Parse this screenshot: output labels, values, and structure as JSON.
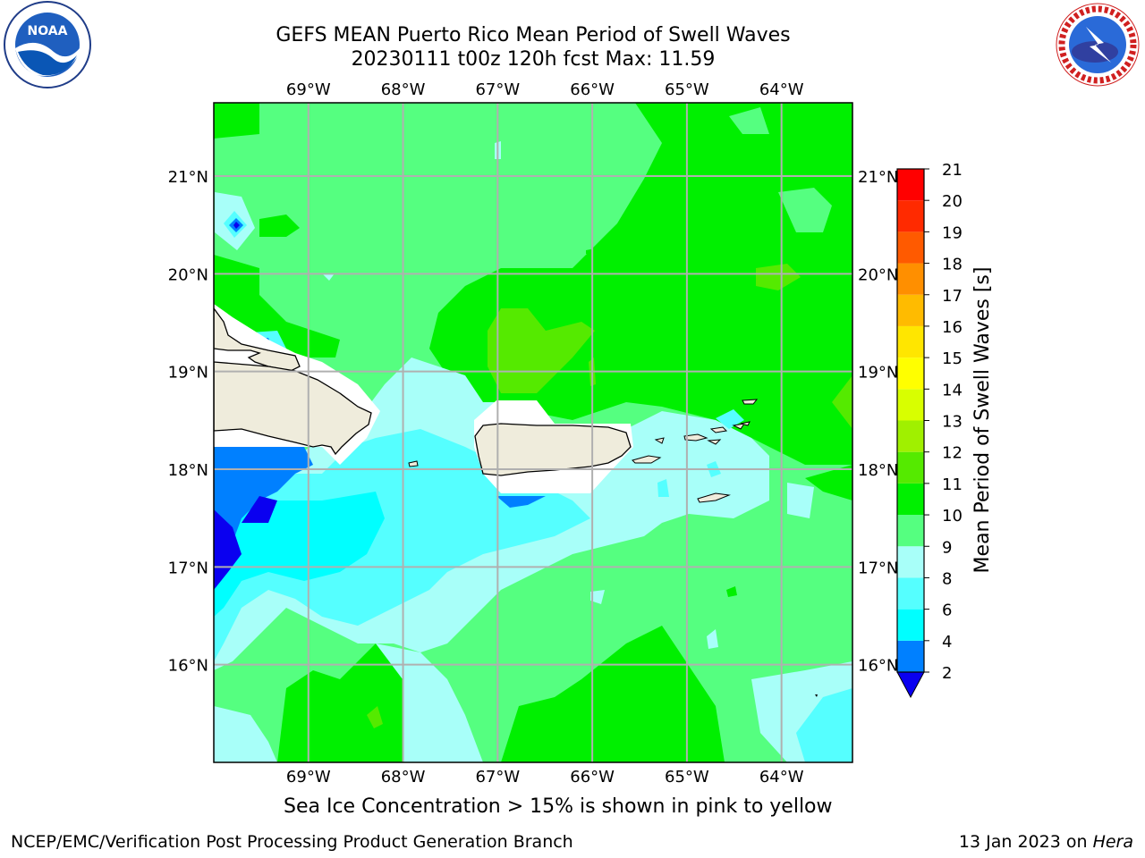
{
  "header": {
    "title_line1": "GEFS MEAN Puerto Rico Mean Period of Swell Waves",
    "title_line2": "20230111 t00z 120h fcst   Max: 11.59"
  },
  "logos": {
    "left": {
      "icon": "noaa-logo",
      "text": "NOAA",
      "ring_text": "NATIONAL OCEANIC AND ATMOSPHERIC ADMINISTRATION · U.S. DEPARTMENT OF COMMERCE"
    },
    "right": {
      "icon": "nws-logo",
      "ring_text": "NATIONAL WEATHER SERVICE"
    }
  },
  "map": {
    "lon_labels": [
      "69°W",
      "68°W",
      "67°W",
      "66°W",
      "65°W",
      "64°W"
    ],
    "lat_labels": [
      "21°N",
      "20°N",
      "19°N",
      "18°N",
      "17°N",
      "16°N"
    ],
    "land_color": "#efecdc",
    "gridline_color": "#b0b0b0"
  },
  "chart_data": {
    "type": "heatmap",
    "variable": "Mean Period of Swell Waves",
    "units": "s",
    "max_value": 11.59,
    "lon_range": [
      -70,
      -63.25
    ],
    "lat_range": [
      15,
      21.75
    ],
    "colorbar": {
      "label": "Mean Period of Swell Waves [s]",
      "ticks": [
        "21",
        "20",
        "19",
        "18",
        "17",
        "16",
        "15",
        "14",
        "13",
        "12",
        "11",
        "10",
        "9",
        "8",
        "6",
        "4",
        "2"
      ],
      "levels": [
        2,
        4,
        6,
        8,
        9,
        10,
        11,
        12,
        13,
        14,
        15,
        16,
        17,
        18,
        19,
        20,
        21
      ],
      "colors": [
        "#0a00f0",
        "#0080ff",
        "#00ffff",
        "#55ffff",
        "#a8fff9",
        "#55ff80",
        "#00f000",
        "#55ea00",
        "#a0f000",
        "#d8ff00",
        "#ffff00",
        "#ffe600",
        "#ffbb00",
        "#ff8f00",
        "#ff5a00",
        "#ff2a00",
        "#ff0000"
      ],
      "extend": "min"
    }
  },
  "footer": {
    "caption": "Sea Ice Concentration > 15% is shown in pink to yellow",
    "left": "NCEP/EMC/Verification Post Processing Product Generation Branch",
    "right_date": "13 Jan 2023 on ",
    "right_machine": "Hera"
  }
}
